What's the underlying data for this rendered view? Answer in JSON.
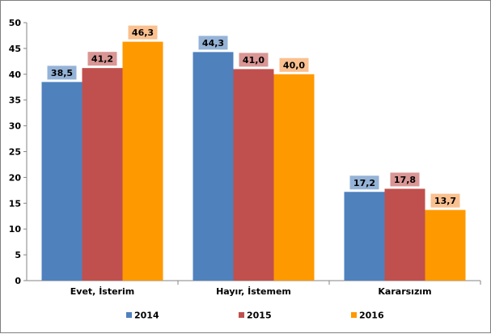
{
  "chart_data": {
    "type": "bar",
    "title": "",
    "xlabel": "",
    "ylabel": "",
    "ylim": [
      0,
      50
    ],
    "yticks": [
      0,
      5,
      10,
      15,
      20,
      25,
      30,
      35,
      40,
      45,
      50
    ],
    "grid": false,
    "legend_position": "bottom",
    "categories": [
      "Evet, İsterim",
      "Hayır, İstemem",
      "Kararsızım"
    ],
    "series": [
      {
        "name": "2014",
        "color": "#4f81bd",
        "label_bg": "#95b3d7",
        "values": [
          38.5,
          44.3,
          17.2
        ],
        "labels": [
          "38,5",
          "44,3",
          "17,2"
        ]
      },
      {
        "name": "2015",
        "color": "#c0504d",
        "label_bg": "#d99694",
        "values": [
          41.2,
          41.0,
          17.8
        ],
        "labels": [
          "41,2",
          "41,0",
          "17,8"
        ]
      },
      {
        "name": "2016",
        "color": "#ff9900",
        "label_bg": "#fac08f",
        "values": [
          46.3,
          40.0,
          13.7
        ],
        "labels": [
          "46,3",
          "40,0",
          "13,7"
        ]
      }
    ]
  }
}
